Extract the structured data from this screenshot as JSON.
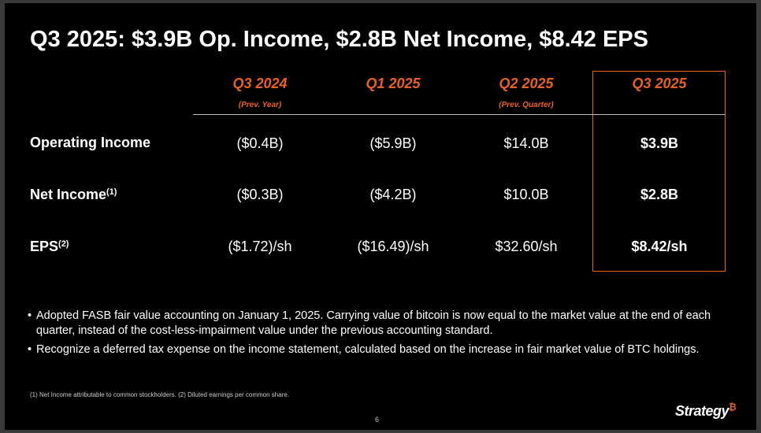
{
  "title": "Q3 2025: $3.9B Op. Income, $2.8B Net Income, $8.42 EPS",
  "columns": [
    {
      "label": "Q3 2024",
      "sub": "(Prev. Year)"
    },
    {
      "label": "Q1 2025",
      "sub": ""
    },
    {
      "label": "Q2 2025",
      "sub": "(Prev. Quarter)"
    },
    {
      "label": "Q3 2025",
      "sub": ""
    }
  ],
  "rows": [
    {
      "label": "Operating Income",
      "sup": "",
      "values": [
        "($0.4B)",
        "($5.9B)",
        "$14.0B",
        "$3.9B"
      ]
    },
    {
      "label": "Net Income",
      "sup": "(1)",
      "values": [
        "($0.3B)",
        "($4.2B)",
        "$10.0B",
        "$2.8B"
      ]
    },
    {
      "label": "EPS",
      "sup": "(2)",
      "values": [
        "($1.72)/sh",
        "($16.49)/sh",
        "$32.60/sh",
        "$8.42/sh"
      ]
    }
  ],
  "bullets": [
    "Adopted FASB fair value accounting on January 1, 2025. Carrying value of bitcoin is now equal to the market value at the end of each quarter, instead of the cost-less-impairment value under the previous accounting standard.",
    "Recognize a deferred tax expense on the income statement, calculated based on the increase in fair market value of BTC holdings."
  ],
  "bullet_char": "•",
  "footnote": "(1) Net Income attributable to common stockholders. (2) Diluted earnings per common share.",
  "page_number": "6",
  "logo": {
    "text": "Strategy",
    "mark": "₿"
  },
  "colors": {
    "accent": "#e8621d",
    "background": "#000000",
    "text": "#ffffff"
  }
}
